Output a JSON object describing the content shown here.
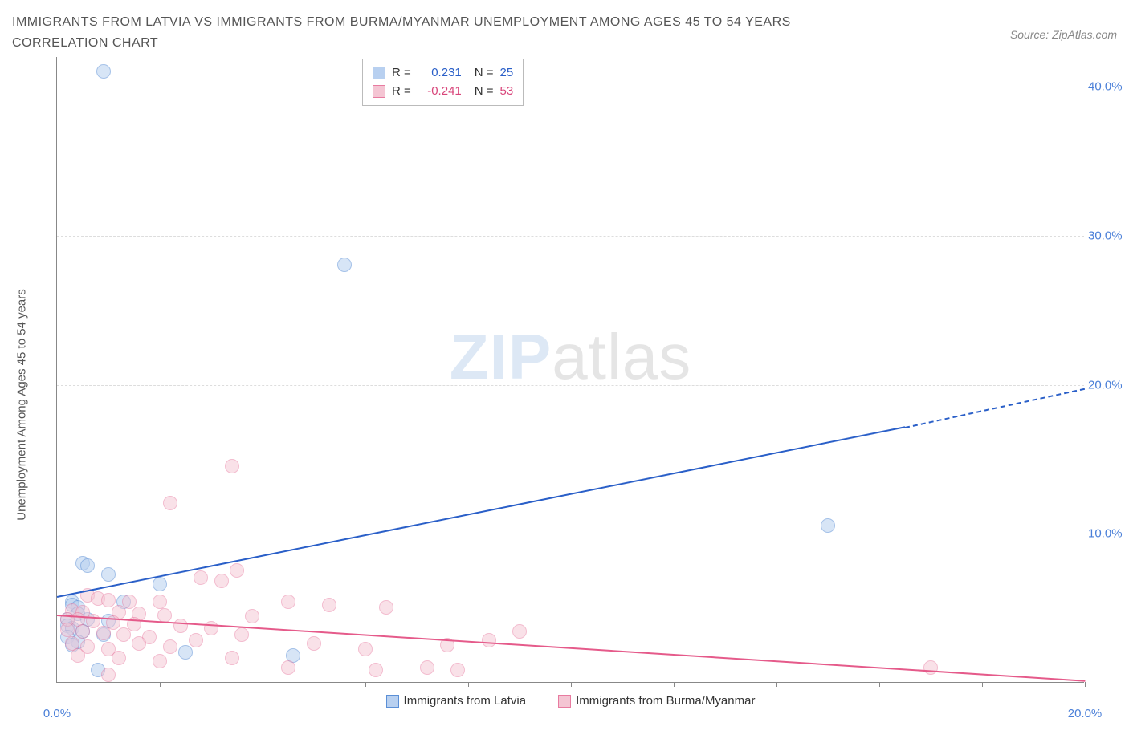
{
  "title_line1": "IMMIGRANTS FROM LATVIA VS IMMIGRANTS FROM BURMA/MYANMAR UNEMPLOYMENT AMONG AGES 45 TO 54 YEARS",
  "title_line2": "CORRELATION CHART",
  "source_label": "Source: ZipAtlas.com",
  "ylabel": "Unemployment Among Ages 45 to 54 years",
  "watermark_a": "ZIP",
  "watermark_b": "atlas",
  "chart": {
    "type": "scatter",
    "xlim": [
      0,
      20
    ],
    "ylim": [
      0,
      42
    ],
    "xtick_vals": [
      0,
      2,
      4,
      6,
      8,
      10,
      12,
      14,
      16,
      18,
      20
    ],
    "xtick_labels": [
      "0.0%",
      "",
      "",
      "",
      "",
      "",
      "",
      "",
      "",
      "",
      "20.0%"
    ],
    "ytick_vals": [
      10,
      20,
      30,
      40
    ],
    "ytick_labels": [
      "10.0%",
      "20.0%",
      "30.0%",
      "40.0%"
    ],
    "ytick_color": "#4a7fd8",
    "xtick_color": "#4a7fd8",
    "grid_color": "#dddddd",
    "marker_radius": 9,
    "marker_border_width": 1.5,
    "series": [
      {
        "name": "Immigrants from Latvia",
        "fill": "#b8d0f0",
        "stroke": "#5b8fd6",
        "fill_opacity": 0.55,
        "r_label": "R =",
        "r_value": "0.231",
        "n_label": "N =",
        "n_value": "25",
        "r_color": "#2a5fc8",
        "points": [
          [
            0.9,
            41.0
          ],
          [
            5.6,
            28.0
          ],
          [
            15.0,
            10.5
          ],
          [
            0.5,
            8.0
          ],
          [
            0.6,
            7.8
          ],
          [
            1.0,
            7.2
          ],
          [
            2.0,
            6.6
          ],
          [
            1.3,
            5.4
          ],
          [
            0.3,
            5.4
          ],
          [
            0.3,
            5.2
          ],
          [
            0.4,
            5.0
          ],
          [
            0.4,
            4.6
          ],
          [
            0.2,
            4.2
          ],
          [
            0.6,
            4.2
          ],
          [
            1.0,
            4.1
          ],
          [
            0.2,
            3.8
          ],
          [
            0.3,
            3.6
          ],
          [
            0.5,
            3.4
          ],
          [
            0.9,
            3.2
          ],
          [
            0.2,
            3.0
          ],
          [
            0.4,
            2.7
          ],
          [
            0.3,
            2.5
          ],
          [
            2.5,
            2.0
          ],
          [
            4.6,
            1.8
          ],
          [
            0.8,
            0.8
          ]
        ],
        "trend": {
          "x1": 0,
          "y1": 5.8,
          "x2": 16.5,
          "y2": 17.2,
          "dash_from_x": 16.5,
          "dash_to_x": 20,
          "dash_to_y": 19.8,
          "color": "#2a5fc8"
        }
      },
      {
        "name": "Immigrants from Burma/Myanmar",
        "fill": "#f4c5d3",
        "stroke": "#e87ba0",
        "fill_opacity": 0.5,
        "r_label": "R =",
        "r_value": "-0.241",
        "n_label": "N =",
        "n_value": "53",
        "r_color": "#d8457a",
        "points": [
          [
            3.4,
            14.5
          ],
          [
            2.2,
            12.0
          ],
          [
            3.5,
            7.5
          ],
          [
            2.8,
            7.0
          ],
          [
            3.2,
            6.8
          ],
          [
            0.6,
            5.8
          ],
          [
            0.8,
            5.6
          ],
          [
            1.0,
            5.5
          ],
          [
            1.4,
            5.4
          ],
          [
            2.0,
            5.4
          ],
          [
            4.5,
            5.4
          ],
          [
            5.3,
            5.2
          ],
          [
            6.4,
            5.0
          ],
          [
            0.3,
            4.8
          ],
          [
            0.5,
            4.7
          ],
          [
            1.2,
            4.7
          ],
          [
            1.6,
            4.6
          ],
          [
            2.1,
            4.5
          ],
          [
            3.8,
            4.4
          ],
          [
            0.2,
            4.2
          ],
          [
            0.4,
            4.2
          ],
          [
            0.7,
            4.1
          ],
          [
            1.1,
            4.0
          ],
          [
            1.5,
            3.9
          ],
          [
            2.4,
            3.8
          ],
          [
            3.0,
            3.6
          ],
          [
            0.2,
            3.5
          ],
          [
            0.5,
            3.4
          ],
          [
            0.9,
            3.3
          ],
          [
            1.3,
            3.2
          ],
          [
            1.8,
            3.0
          ],
          [
            2.7,
            2.8
          ],
          [
            3.6,
            3.2
          ],
          [
            0.3,
            2.6
          ],
          [
            0.6,
            2.4
          ],
          [
            1.0,
            2.2
          ],
          [
            1.6,
            2.6
          ],
          [
            2.2,
            2.4
          ],
          [
            5.0,
            2.6
          ],
          [
            6.0,
            2.2
          ],
          [
            7.6,
            2.5
          ],
          [
            8.4,
            2.8
          ],
          [
            9.0,
            3.4
          ],
          [
            0.4,
            1.8
          ],
          [
            1.2,
            1.6
          ],
          [
            2.0,
            1.4
          ],
          [
            3.4,
            1.6
          ],
          [
            4.5,
            1.0
          ],
          [
            6.2,
            0.8
          ],
          [
            7.2,
            1.0
          ],
          [
            7.8,
            0.8
          ],
          [
            17.0,
            1.0
          ],
          [
            1.0,
            0.5
          ]
        ],
        "trend": {
          "x1": 0,
          "y1": 4.6,
          "x2": 20,
          "y2": 0.2,
          "color": "#e55a8a"
        }
      }
    ]
  },
  "legend_bottom": {
    "items": [
      {
        "label": "Immigrants from Latvia",
        "fill": "#b8d0f0",
        "stroke": "#5b8fd6"
      },
      {
        "label": "Immigrants from Burma/Myanmar",
        "fill": "#f4c5d3",
        "stroke": "#e87ba0"
      }
    ]
  }
}
